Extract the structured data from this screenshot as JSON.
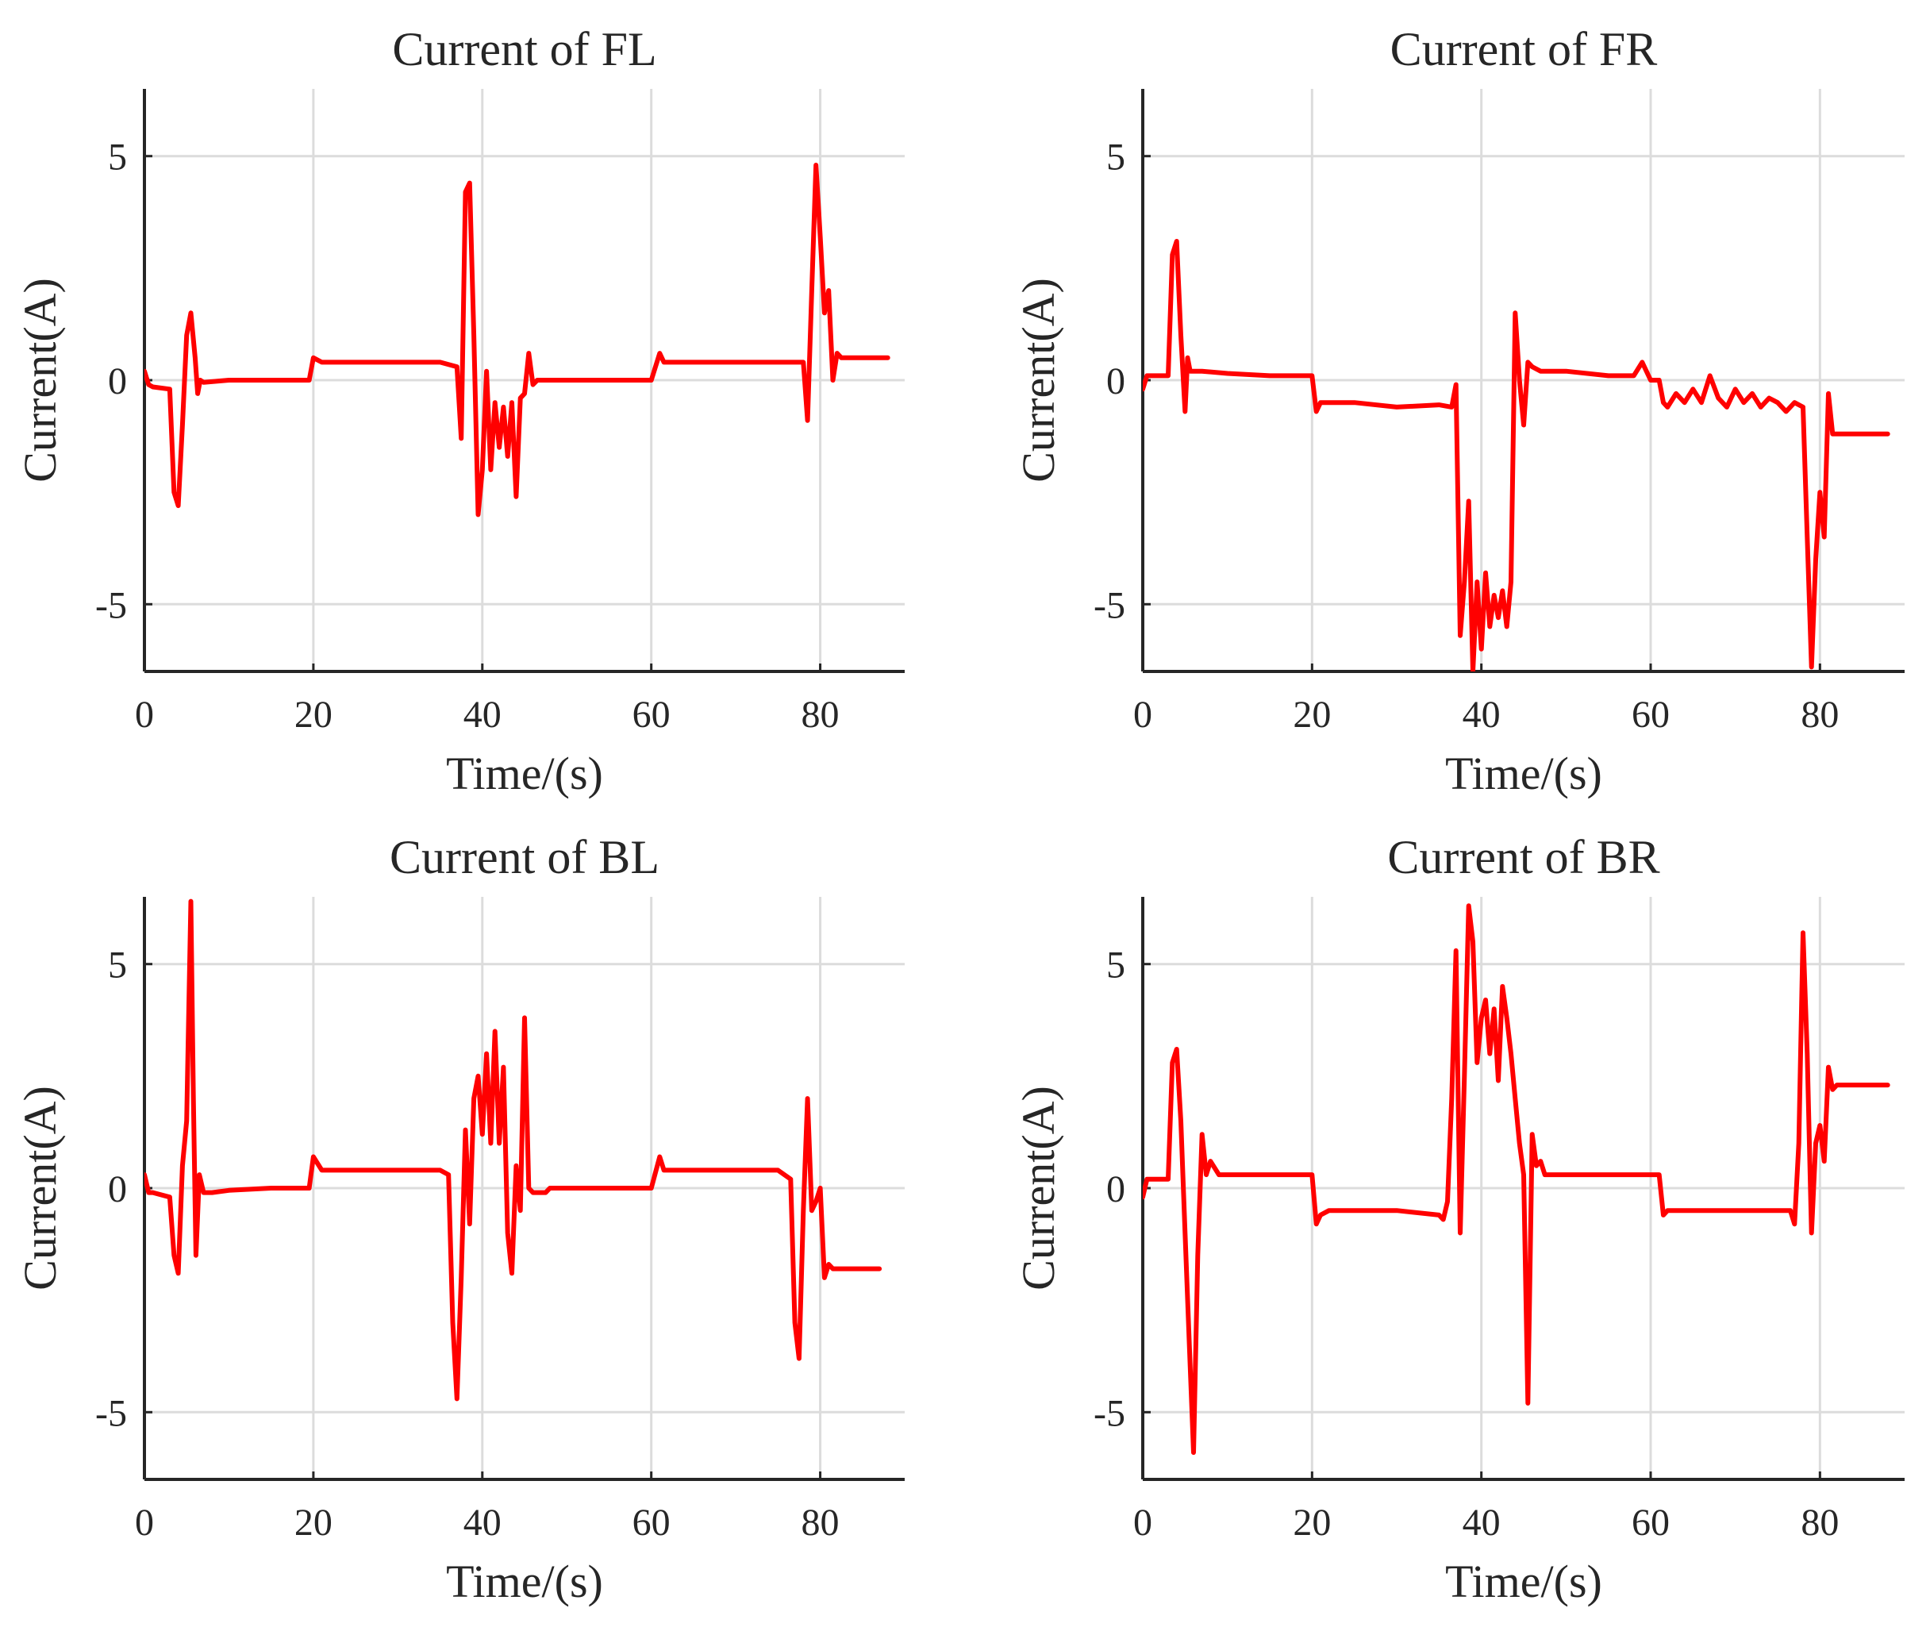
{
  "chart_data": [
    {
      "type": "line",
      "title": "Current of FL",
      "xlabel": "Time/(s)",
      "ylabel": "Current(A)",
      "xlim": [
        0,
        90
      ],
      "ylim": [
        -6.5,
        6.5
      ],
      "xticks": [
        0,
        20,
        40,
        60,
        80
      ],
      "yticks": [
        -5,
        0,
        5
      ],
      "xtick_labels": [
        "0",
        "20",
        "40",
        "60",
        "80"
      ],
      "ytick_labels": [
        "-5",
        "0",
        "5"
      ],
      "grid": true,
      "series": [
        {
          "name": "Current of FL",
          "color": "#ff0000",
          "x": [
            0,
            0.5,
            1,
            3,
            3.5,
            4,
            4.5,
            5,
            5.5,
            6,
            6.3,
            6.6,
            7,
            10,
            15,
            19.5,
            20,
            21,
            25,
            30,
            35,
            37,
            37.5,
            38,
            38.5,
            39,
            39.5,
            40,
            40.5,
            41,
            41.5,
            42,
            42.5,
            43,
            43.5,
            44,
            44.5,
            45,
            45.5,
            46,
            46.5,
            47,
            50,
            55,
            60,
            61,
            61.5,
            62,
            65,
            70,
            75,
            78,
            78.5,
            79,
            79.5,
            80,
            80.5,
            81,
            81.5,
            82,
            82.5,
            83,
            85,
            88
          ],
          "y": [
            0.2,
            -0.1,
            -0.15,
            -0.2,
            -2.5,
            -2.8,
            -1.0,
            1.0,
            1.5,
            0.5,
            -0.3,
            0.0,
            -0.05,
            0.0,
            0.0,
            0.0,
            0.5,
            0.4,
            0.4,
            0.4,
            0.4,
            0.3,
            -1.3,
            4.2,
            4.4,
            1.0,
            -3.0,
            -2.0,
            0.2,
            -2.0,
            -0.5,
            -1.5,
            -0.6,
            -1.7,
            -0.5,
            -2.6,
            -0.4,
            -0.3,
            0.6,
            -0.1,
            0.0,
            0.0,
            0.0,
            0.0,
            0.0,
            0.6,
            0.4,
            0.4,
            0.4,
            0.4,
            0.4,
            0.4,
            -0.9,
            2.0,
            4.8,
            3.2,
            1.5,
            2.0,
            0.0,
            0.6,
            0.5,
            0.5,
            0.5,
            0.5
          ]
        }
      ]
    },
    {
      "type": "line",
      "title": "Current of FR",
      "xlabel": "Time/(s)",
      "ylabel": "Current(A)",
      "xlim": [
        0,
        90
      ],
      "ylim": [
        -6.5,
        6.5
      ],
      "xticks": [
        0,
        20,
        40,
        60,
        80
      ],
      "yticks": [
        -5,
        0,
        5
      ],
      "xtick_labels": [
        "0",
        "20",
        "40",
        "60",
        "80"
      ],
      "ytick_labels": [
        "-5",
        "0",
        "5"
      ],
      "grid": true,
      "series": [
        {
          "name": "Current of FR",
          "color": "#ff0000",
          "x": [
            0,
            0.5,
            1,
            3,
            3.5,
            4,
            4.5,
            5,
            5.3,
            5.6,
            6,
            7,
            10,
            15,
            20,
            20.5,
            21,
            22,
            25,
            30,
            35,
            36.5,
            37,
            37.5,
            38,
            38.5,
            39,
            39.5,
            40,
            40.5,
            41,
            41.5,
            42,
            42.5,
            43,
            43.5,
            44,
            44.5,
            45,
            45.5,
            46,
            47,
            50,
            55,
            58,
            59,
            60,
            61,
            61.5,
            62,
            63,
            64,
            65,
            66,
            67,
            68,
            69,
            70,
            71,
            72,
            73,
            74,
            75,
            76,
            77,
            78,
            78.5,
            79,
            79.5,
            80,
            80.5,
            81,
            81.5,
            82,
            82.5,
            83,
            85,
            88
          ],
          "y": [
            -0.2,
            0.1,
            0.1,
            0.1,
            2.8,
            3.1,
            1.0,
            -0.7,
            0.5,
            0.2,
            0.2,
            0.2,
            0.15,
            0.1,
            0.1,
            -0.7,
            -0.5,
            -0.5,
            -0.5,
            -0.6,
            -0.55,
            -0.6,
            -0.1,
            -5.7,
            -4.5,
            -2.7,
            -6.5,
            -4.5,
            -6.0,
            -4.3,
            -5.5,
            -4.8,
            -5.3,
            -4.7,
            -5.5,
            -4.5,
            1.5,
            0.0,
            -1.0,
            0.4,
            0.3,
            0.2,
            0.2,
            0.1,
            0.1,
            0.4,
            0.0,
            0.0,
            -0.5,
            -0.6,
            -0.3,
            -0.5,
            -0.2,
            -0.5,
            0.1,
            -0.4,
            -0.6,
            -0.2,
            -0.5,
            -0.3,
            -0.6,
            -0.4,
            -0.5,
            -0.7,
            -0.5,
            -0.6,
            -3.5,
            -6.4,
            -4.0,
            -2.5,
            -3.5,
            -0.3,
            -1.2,
            -1.2,
            -1.2,
            -1.2,
            -1.2,
            -1.2
          ]
        }
      ]
    },
    {
      "type": "line",
      "title": "Current of BL",
      "xlabel": "Time/(s)",
      "ylabel": "Current(A)",
      "xlim": [
        0,
        90
      ],
      "ylim": [
        -6.5,
        6.5
      ],
      "xticks": [
        0,
        20,
        40,
        60,
        80
      ],
      "yticks": [
        -5,
        0,
        5
      ],
      "xtick_labels": [
        "0",
        "20",
        "40",
        "60",
        "80"
      ],
      "ytick_labels": [
        "-5",
        "0",
        "5"
      ],
      "grid": true,
      "series": [
        {
          "name": "Current of BL",
          "color": "#ff0000",
          "x": [
            0,
            0.5,
            1,
            3,
            3.5,
            4,
            4.5,
            5,
            5.5,
            5.8,
            6.1,
            6.5,
            7,
            8,
            10,
            15,
            19.5,
            20,
            21,
            25,
            30,
            35,
            36,
            36.5,
            37,
            37.5,
            38,
            38.5,
            39,
            39.5,
            40,
            40.5,
            41,
            41.5,
            42,
            42.5,
            43,
            43.5,
            44,
            44.5,
            45,
            45.5,
            46,
            46.5,
            47,
            47.5,
            48,
            50,
            55,
            60,
            61,
            61.5,
            62,
            65,
            70,
            75,
            76.5,
            77,
            77.5,
            78,
            78.5,
            79,
            79.5,
            80,
            80.5,
            81,
            81.5,
            82,
            84,
            87
          ],
          "y": [
            0.3,
            -0.1,
            -0.1,
            -0.2,
            -1.5,
            -1.9,
            0.5,
            1.5,
            6.4,
            2.0,
            -1.5,
            0.3,
            -0.1,
            -0.1,
            -0.05,
            0.0,
            0.0,
            0.7,
            0.4,
            0.4,
            0.4,
            0.4,
            0.3,
            -3.0,
            -4.7,
            -2.0,
            1.3,
            -0.8,
            2.0,
            2.5,
            1.2,
            3.0,
            1.0,
            3.5,
            1.0,
            2.7,
            -1.0,
            -1.9,
            0.5,
            -0.5,
            3.8,
            0.0,
            -0.1,
            -0.1,
            -0.1,
            -0.1,
            0.0,
            0.0,
            0.0,
            0.0,
            0.7,
            0.4,
            0.4,
            0.4,
            0.4,
            0.4,
            0.2,
            -3.0,
            -3.8,
            -0.5,
            2.0,
            -0.5,
            -0.3,
            0.0,
            -2.0,
            -1.7,
            -1.8,
            -1.8,
            -1.8,
            -1.8
          ]
        }
      ]
    },
    {
      "type": "line",
      "title": "Current of BR",
      "xlabel": "Time/(s)",
      "ylabel": "Current(A)",
      "xlim": [
        0,
        90
      ],
      "ylim": [
        -6.5,
        6.5
      ],
      "xticks": [
        0,
        20,
        40,
        60,
        80
      ],
      "yticks": [
        -5,
        0,
        5
      ],
      "xtick_labels": [
        "0",
        "20",
        "40",
        "60",
        "80"
      ],
      "ytick_labels": [
        "-5",
        "0",
        "5"
      ],
      "grid": true,
      "series": [
        {
          "name": "Current of BR",
          "color": "#ff0000",
          "x": [
            0,
            0.5,
            1,
            3,
            3.5,
            4,
            4.5,
            5,
            5.5,
            6,
            6.5,
            7,
            7.5,
            8,
            9,
            10,
            15,
            20,
            20.5,
            21,
            22,
            25,
            30,
            35,
            35.5,
            36,
            36.5,
            37,
            37.5,
            38,
            38.5,
            39,
            39.5,
            40,
            40.5,
            41,
            41.5,
            42,
            42.5,
            43,
            43.5,
            44,
            44.5,
            45,
            45.5,
            46,
            46.5,
            47,
            47.5,
            48,
            48.5,
            49,
            50,
            55,
            60,
            61,
            61.5,
            62,
            65,
            70,
            75,
            76,
            76.5,
            77,
            77.5,
            78,
            78.5,
            79,
            79.5,
            80,
            80.5,
            81,
            81.5,
            82,
            82.5,
            83,
            85,
            88
          ],
          "y": [
            -0.2,
            0.2,
            0.2,
            0.2,
            2.8,
            3.1,
            1.5,
            -1.0,
            -3.5,
            -5.9,
            -1.5,
            1.2,
            0.3,
            0.6,
            0.3,
            0.3,
            0.3,
            0.3,
            -0.8,
            -0.6,
            -0.5,
            -0.5,
            -0.5,
            -0.6,
            -0.7,
            -0.3,
            2.0,
            5.3,
            -1.0,
            2.5,
            6.3,
            5.5,
            2.8,
            3.8,
            4.2,
            3.0,
            4.0,
            2.4,
            4.5,
            3.8,
            3.0,
            2.0,
            1.0,
            0.3,
            -4.8,
            1.2,
            0.5,
            0.6,
            0.3,
            0.3,
            0.3,
            0.3,
            0.3,
            0.3,
            0.3,
            0.3,
            -0.6,
            -0.5,
            -0.5,
            -0.5,
            -0.5,
            -0.5,
            -0.5,
            -0.8,
            1.0,
            5.7,
            3.0,
            -1.0,
            1.0,
            1.4,
            0.6,
            2.7,
            2.2,
            2.3,
            2.3,
            2.3,
            2.3,
            2.3
          ]
        }
      ]
    }
  ]
}
